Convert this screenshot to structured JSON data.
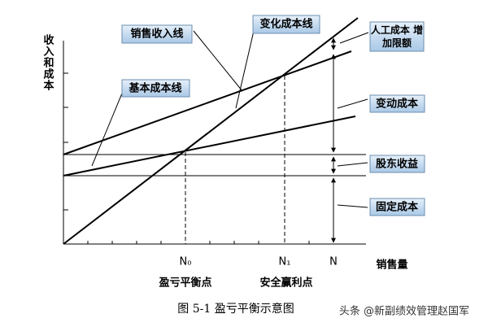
{
  "axis": {
    "y_label": "收入和成本",
    "x_label": "销售量"
  },
  "callouts": {
    "sales_revenue_line": "销售收入线",
    "variable_cost_line": "变化成本线",
    "base_cost_line": "基本成本线",
    "labor_cost_limit": "人工成本 增加限额",
    "variable_cost": "变动成本",
    "shareholder_income": "股东收益",
    "fixed_cost": "固定成本"
  },
  "points": {
    "n0": "N₀",
    "n1": "N₁",
    "n": "N",
    "break_even": "盈亏平衡点",
    "safe_profit": "安全赢利点"
  },
  "caption": "图 5-1 盈亏平衡示意图",
  "watermark": "头条 @新副绩效管理赵国军"
}
